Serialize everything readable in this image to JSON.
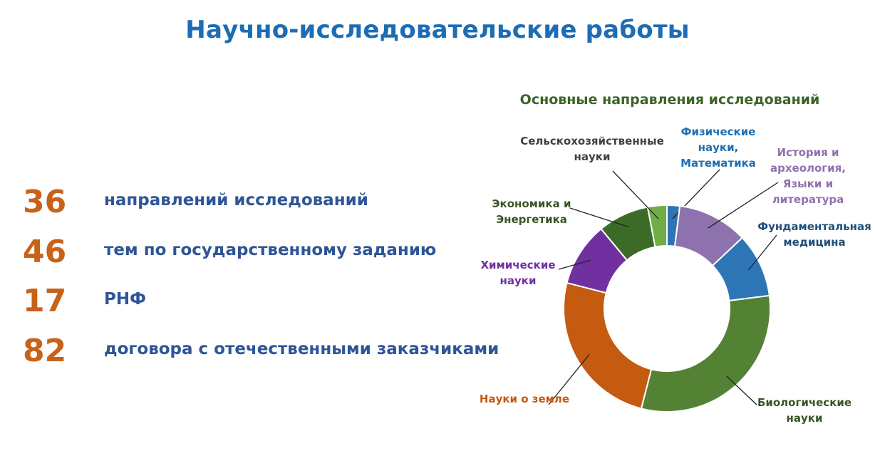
{
  "title": "Научно-исследовательские работы",
  "stats": [
    {
      "value": "36",
      "label": "направлений исследований"
    },
    {
      "value": "46",
      "label": "тем по государственному заданию"
    },
    {
      "value": "17",
      "label": "РНФ"
    },
    {
      "value": "82",
      "label": "договора с отечественными заказчиками"
    }
  ],
  "colors": {
    "title": "#1c6db5",
    "stat_number": "#c8621a",
    "stat_label": "#2e5596",
    "chart_title": "#3b6428"
  },
  "chart_data": {
    "type": "pie",
    "style": "donut",
    "title": "Основные направления исследований",
    "slices": [
      {
        "label": "Физические науки, Математика",
        "value": 2,
        "color": "#2e75b6",
        "label_color": "#1f6fb2"
      },
      {
        "label": "История и археология, Языки и литература",
        "value": 11,
        "color": "#8e72ad",
        "label_color": "#8e72ad"
      },
      {
        "label": "Фундаментальная медицина",
        "value": 10,
        "color": "#2e75b6",
        "label_color": "#1f4e79"
      },
      {
        "label": "Биологические науки",
        "value": 31,
        "color": "#548235",
        "label_color": "#375623"
      },
      {
        "label": "Науки о земле",
        "value": 25,
        "color": "#c55a11",
        "label_color": "#c55a11"
      },
      {
        "label": "Химические науки",
        "value": 10,
        "color": "#7030a0",
        "label_color": "#7030a0"
      },
      {
        "label": "Экономика и Энергетика",
        "value": 8,
        "color": "#3c6b27",
        "label_color": "#375623"
      },
      {
        "label": "Сельскохозяйственные науки",
        "value": 3,
        "color": "#70ad47",
        "label_color": "#404040"
      }
    ]
  }
}
